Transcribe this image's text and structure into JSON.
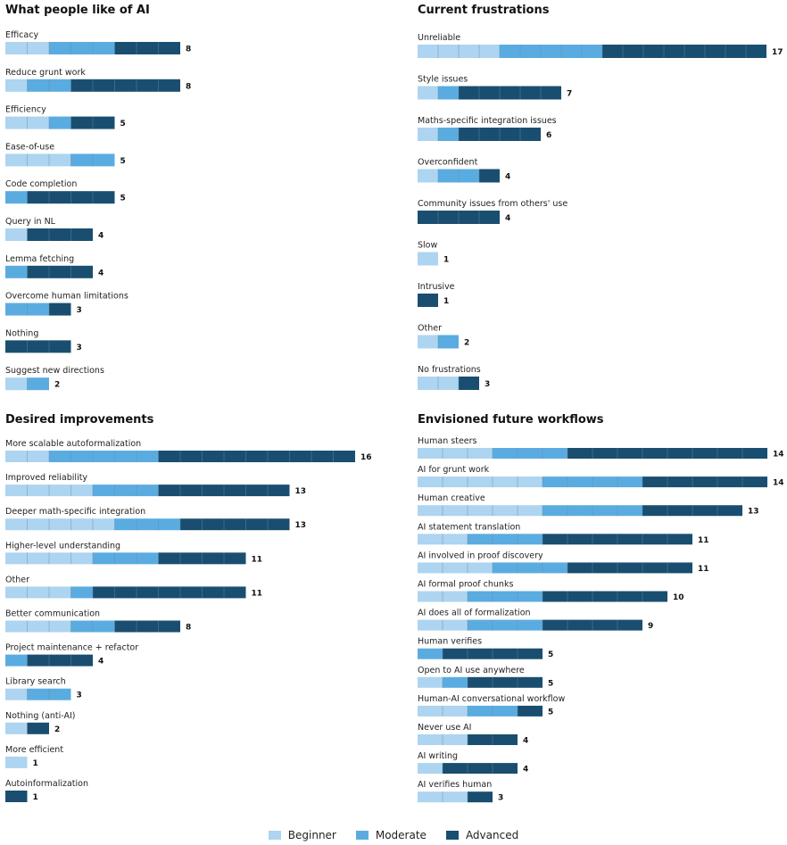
{
  "colors": {
    "beginner": "#add4f0",
    "moderate": "#5aace0",
    "advanced": "#1a4e70"
  },
  "legend": [
    {
      "key": "beginner",
      "label": "Beginner"
    },
    {
      "key": "moderate",
      "label": "Moderate"
    },
    {
      "key": "advanced",
      "label": "Advanced"
    }
  ],
  "chart_data": [
    {
      "type": "bar",
      "stacked": true,
      "orientation": "horizontal",
      "title": "What people like of AI",
      "categories": [
        "Efficacy",
        "Reduce grunt work",
        "Efficiency",
        "Ease-of-use",
        "Code completion",
        "Query in NL",
        "Lemma fetching",
        "Overcome human limitations",
        "Nothing",
        "Suggest new directions"
      ],
      "series": [
        {
          "name": "Beginner",
          "values": [
            2,
            1,
            2,
            3,
            0,
            1,
            0,
            0,
            0,
            1
          ]
        },
        {
          "name": "Moderate",
          "values": [
            3,
            2,
            1,
            2,
            1,
            0,
            1,
            2,
            0,
            1
          ]
        },
        {
          "name": "Advanced",
          "values": [
            3,
            5,
            2,
            0,
            4,
            3,
            3,
            1,
            3,
            0
          ]
        }
      ],
      "totals": [
        8,
        8,
        5,
        5,
        5,
        4,
        4,
        3,
        3,
        2
      ]
    },
    {
      "type": "bar",
      "stacked": true,
      "orientation": "horizontal",
      "title": "Current frustrations",
      "categories": [
        "Unreliable",
        "Style issues",
        "Maths-specific integration issues",
        "Overconfident",
        "Community issues from others' use",
        "Slow",
        "Intrusive",
        "Other",
        "No frustrations"
      ],
      "series": [
        {
          "name": "Beginner",
          "values": [
            4,
            1,
            1,
            1,
            0,
            1,
            0,
            1,
            2
          ]
        },
        {
          "name": "Moderate",
          "values": [
            5,
            1,
            1,
            2,
            0,
            0,
            0,
            1,
            0
          ]
        },
        {
          "name": "Advanced",
          "values": [
            8,
            5,
            4,
            1,
            4,
            0,
            1,
            0,
            1
          ]
        }
      ],
      "totals": [
        17,
        7,
        6,
        4,
        4,
        1,
        1,
        2,
        3
      ]
    },
    {
      "type": "bar",
      "stacked": true,
      "orientation": "horizontal",
      "title": "Desired improvements",
      "categories": [
        "More scalable autoformalization",
        "Improved reliability",
        "Deeper math-specific integration",
        "Higher-level understanding",
        "Other",
        "Better communication",
        "Project maintenance + refactor",
        "Library search",
        "Nothing (anti-AI)",
        "More efficient",
        "Autoinformalization"
      ],
      "series": [
        {
          "name": "Beginner",
          "values": [
            2,
            4,
            5,
            4,
            3,
            3,
            0,
            1,
            1,
            1,
            0
          ]
        },
        {
          "name": "Moderate",
          "values": [
            5,
            3,
            3,
            3,
            1,
            2,
            1,
            2,
            0,
            0,
            0
          ]
        },
        {
          "name": "Advanced",
          "values": [
            9,
            6,
            5,
            4,
            7,
            3,
            3,
            0,
            1,
            0,
            1
          ]
        }
      ],
      "totals": [
        16,
        13,
        13,
        11,
        11,
        8,
        4,
        3,
        2,
        1,
        1
      ]
    },
    {
      "type": "bar",
      "stacked": true,
      "orientation": "horizontal",
      "title": "Envisioned future workflows",
      "categories": [
        "Human steers",
        "AI for grunt work",
        "Human creative",
        "AI statement translation",
        "AI involved in proof discovery",
        "AI formal proof chunks",
        "AI does all of formalization",
        "Human verifies",
        "Open to AI use anywhere",
        "Human-AI conversational workflow",
        "Never use AI",
        "AI writing",
        "AI verifies human"
      ],
      "series": [
        {
          "name": "Beginner",
          "values": [
            3,
            5,
            5,
            2,
            3,
            2,
            2,
            0,
            1,
            2,
            2,
            1,
            2
          ]
        },
        {
          "name": "Moderate",
          "values": [
            3,
            4,
            4,
            3,
            3,
            3,
            3,
            1,
            1,
            2,
            0,
            0,
            0
          ]
        },
        {
          "name": "Advanced",
          "values": [
            8,
            5,
            4,
            6,
            5,
            5,
            4,
            4,
            3,
            1,
            2,
            3,
            1
          ]
        }
      ],
      "totals": [
        14,
        14,
        13,
        11,
        11,
        10,
        9,
        5,
        5,
        5,
        4,
        4,
        3
      ]
    }
  ]
}
